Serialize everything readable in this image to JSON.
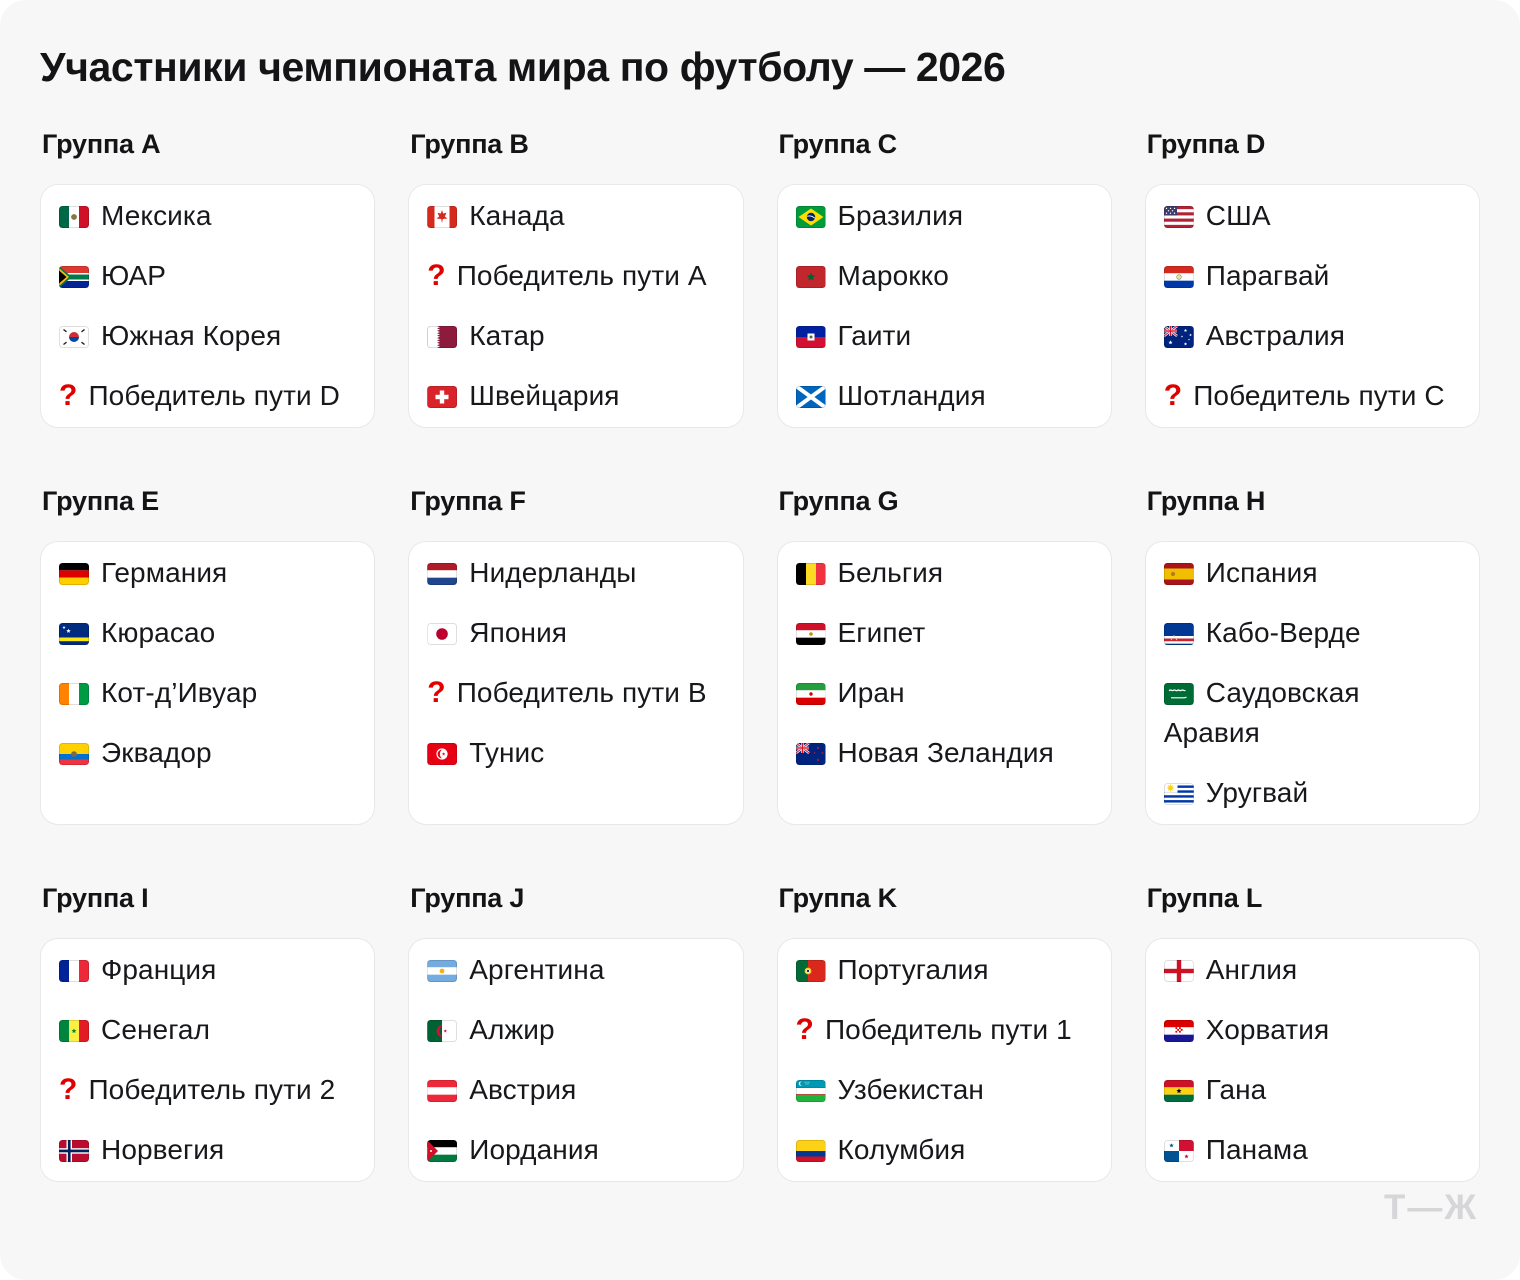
{
  "title": "Участники чемпионата мира по футболу — 2026",
  "watermark": "Т—Ж",
  "colors": {
    "page_bg": "#f7f7f8",
    "card_bg": "#ffffff",
    "card_border": "#e8e8ea",
    "text": "#17181b",
    "question_red": "#e00000",
    "watermark_gray": "#d6d6d8"
  },
  "groups": [
    {
      "label": "Группа A",
      "teams": [
        {
          "flag": "mx",
          "name": "Мексика"
        },
        {
          "flag": "za",
          "name": "ЮАР"
        },
        {
          "flag": "kr",
          "name": "Южная Корея"
        },
        {
          "flag": "q",
          "name": "Победитель пути D"
        }
      ]
    },
    {
      "label": "Группа B",
      "teams": [
        {
          "flag": "ca",
          "name": "Канада"
        },
        {
          "flag": "q",
          "name": "Победитель пути A"
        },
        {
          "flag": "qa",
          "name": "Катар"
        },
        {
          "flag": "ch",
          "name": "Швейцария"
        }
      ]
    },
    {
      "label": "Группа C",
      "teams": [
        {
          "flag": "br",
          "name": "Бразилия"
        },
        {
          "flag": "ma",
          "name": "Марокко"
        },
        {
          "flag": "ht",
          "name": "Гаити"
        },
        {
          "flag": "sct",
          "name": "Шотландия"
        }
      ]
    },
    {
      "label": "Группа D",
      "teams": [
        {
          "flag": "us",
          "name": "США"
        },
        {
          "flag": "py",
          "name": "Парагвай"
        },
        {
          "flag": "au",
          "name": "Австралия"
        },
        {
          "flag": "q",
          "name": "Победитель пути C"
        }
      ]
    },
    {
      "label": "Группа E",
      "teams": [
        {
          "flag": "de",
          "name": "Германия"
        },
        {
          "flag": "cw",
          "name": "Кюрасао"
        },
        {
          "flag": "ci",
          "name": "Кот-д’Ивуар"
        },
        {
          "flag": "ec",
          "name": "Эквадор"
        }
      ]
    },
    {
      "label": "Группа F",
      "teams": [
        {
          "flag": "nl",
          "name": "Нидерланды"
        },
        {
          "flag": "jp",
          "name": "Япония"
        },
        {
          "flag": "q",
          "name": "Победитель пути B"
        },
        {
          "flag": "tn",
          "name": "Тунис"
        }
      ]
    },
    {
      "label": "Группа G",
      "teams": [
        {
          "flag": "be",
          "name": "Бельгия"
        },
        {
          "flag": "eg",
          "name": "Египет"
        },
        {
          "flag": "ir",
          "name": "Иран"
        },
        {
          "flag": "nz",
          "name": "Новая Зеландия"
        }
      ]
    },
    {
      "label": "Группа H",
      "teams": [
        {
          "flag": "es",
          "name": "Испания"
        },
        {
          "flag": "cv",
          "name": "Кабо-Верде"
        },
        {
          "flag": "sa",
          "name": "Саудовская Аравия"
        },
        {
          "flag": "uy",
          "name": "Уругвай"
        }
      ]
    },
    {
      "label": "Группа I",
      "teams": [
        {
          "flag": "fr",
          "name": "Франция"
        },
        {
          "flag": "sn",
          "name": "Сенегал"
        },
        {
          "flag": "q",
          "name": "Победитель пути 2"
        },
        {
          "flag": "no",
          "name": "Норвегия"
        }
      ]
    },
    {
      "label": "Группа J",
      "teams": [
        {
          "flag": "ar",
          "name": "Аргентина"
        },
        {
          "flag": "dz",
          "name": "Алжир"
        },
        {
          "flag": "at",
          "name": "Австрия"
        },
        {
          "flag": "jo",
          "name": "Иордания"
        }
      ]
    },
    {
      "label": "Группа K",
      "teams": [
        {
          "flag": "pt",
          "name": "Португалия"
        },
        {
          "flag": "q",
          "name": "Победитель пути 1"
        },
        {
          "flag": "uz",
          "name": "Узбекистан"
        },
        {
          "flag": "co",
          "name": "Колумбия"
        }
      ]
    },
    {
      "label": "Группа L",
      "teams": [
        {
          "flag": "eng",
          "name": "Англия"
        },
        {
          "flag": "hr",
          "name": "Хорватия"
        },
        {
          "flag": "gh",
          "name": "Гана"
        },
        {
          "flag": "pa",
          "name": "Панама"
        }
      ]
    }
  ]
}
